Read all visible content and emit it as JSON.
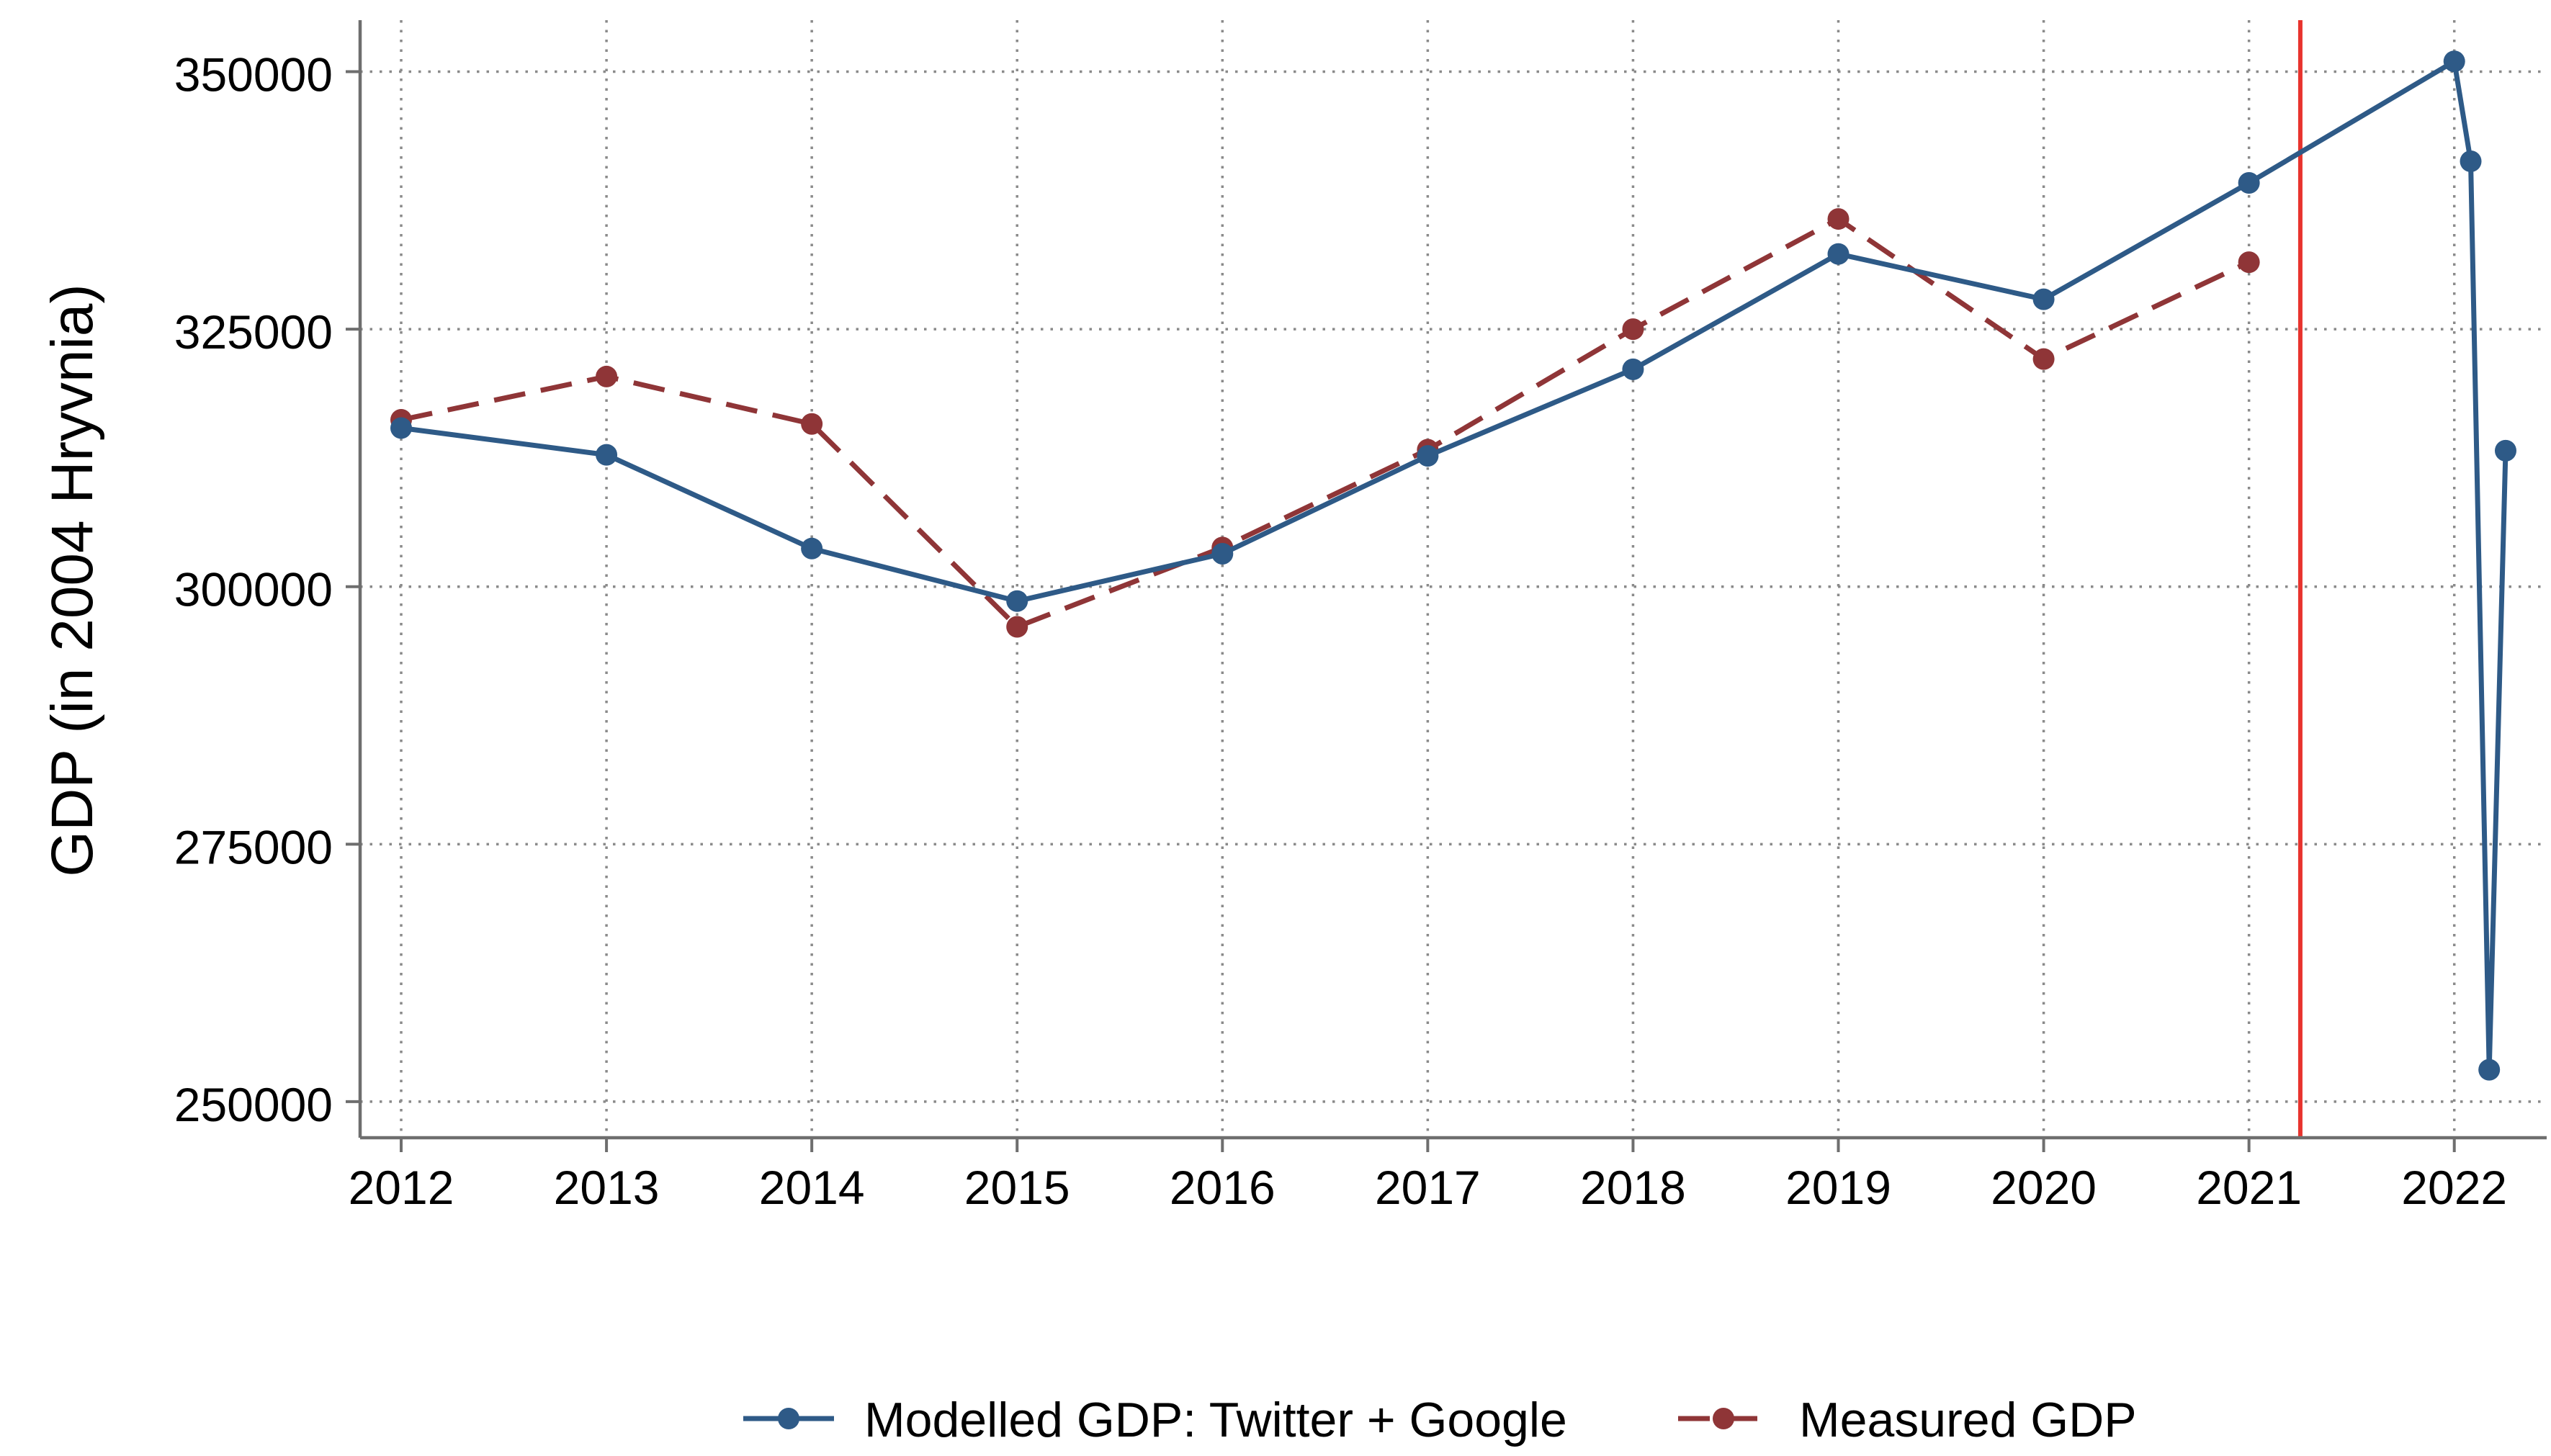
{
  "chart_data": {
    "type": "line",
    "title": "",
    "ylabel": "GDP (in 2004 Hryvnia)",
    "xlabel": "",
    "ylim": [
      246500,
      355000
    ],
    "xlim": [
      2011.8,
      2022.45
    ],
    "yticks": [
      250000,
      275000,
      300000,
      325000,
      350000
    ],
    "ytick_labels": [
      "250000",
      "275000",
      "300000",
      "325000",
      "350000"
    ],
    "xticks": [
      2012,
      2013,
      2014,
      2015,
      2016,
      2017,
      2018,
      2019,
      2020,
      2021,
      2022
    ],
    "xtick_labels": [
      "2012",
      "2013",
      "2014",
      "2015",
      "2016",
      "2017",
      "2018",
      "2019",
      "2020",
      "2021",
      "2022"
    ],
    "grid": true,
    "legend_position": "bottom",
    "vertical_marker": {
      "x": 2021.25,
      "color": "#e8332d"
    },
    "series": [
      {
        "name": "Modelled GDP: Twitter + Google",
        "color": "#2e5a87",
        "style": "solid",
        "x": [
          2012,
          2013,
          2014,
          2015,
          2016,
          2017,
          2018,
          2019,
          2020,
          2021,
          2022,
          2022.08,
          2022.17,
          2022.25
        ],
        "values": [
          315400,
          312800,
          303700,
          298600,
          303200,
          312700,
          321100,
          332300,
          327900,
          339200,
          351000,
          341300,
          253100,
          313200
        ]
      },
      {
        "name": "Measured GDP",
        "color": "#8f3537",
        "style": "dashed",
        "x": [
          2012,
          2013,
          2014,
          2015,
          2016,
          2017,
          2018,
          2019,
          2020,
          2021
        ],
        "values": [
          316200,
          320400,
          315800,
          296100,
          303800,
          313300,
          325000,
          335700,
          322100,
          331500
        ]
      }
    ]
  }
}
